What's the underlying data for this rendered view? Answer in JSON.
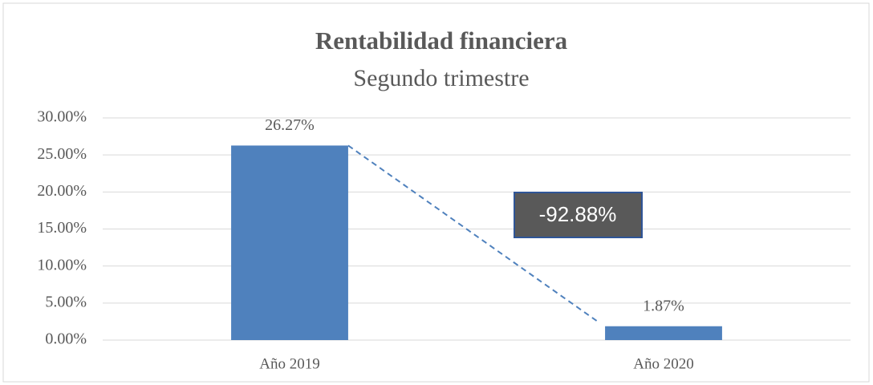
{
  "chart_data": {
    "type": "bar",
    "title": "Rentabilidad financiera",
    "subtitle": "Segundo trimestre",
    "categories": [
      "Año 2019",
      "Año 2020"
    ],
    "values": [
      26.27,
      1.87
    ],
    "value_labels": [
      "26.27%",
      "1.87%"
    ],
    "color": "#4f81bd",
    "ylim": [
      0,
      30
    ],
    "yticks": [
      {
        "value": 0,
        "label": "0.00%"
      },
      {
        "value": 5,
        "label": "5.00%"
      },
      {
        "value": 10,
        "label": "10.00%"
      },
      {
        "value": 15,
        "label": "15.00%"
      },
      {
        "value": 20,
        "label": "20.00%"
      },
      {
        "value": 25,
        "label": "25.00%"
      },
      {
        "value": 30,
        "label": "30.00%"
      }
    ],
    "grid": true,
    "annotation": "-92.88%"
  }
}
